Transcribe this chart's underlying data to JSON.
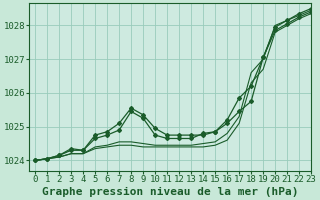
{
  "title": "Graphe pression niveau de la mer (hPa)",
  "background_color": "#c8e8d8",
  "plot_bg_color": "#ceeae0",
  "grid_color": "#99ccbb",
  "line_color": "#1a5c2a",
  "marker_color": "#1a5c2a",
  "xlim": [
    -0.5,
    23
  ],
  "ylim": [
    1023.7,
    1028.65
  ],
  "xticks": [
    0,
    1,
    2,
    3,
    4,
    5,
    6,
    7,
    8,
    9,
    10,
    11,
    12,
    13,
    14,
    15,
    16,
    17,
    18,
    19,
    20,
    21,
    22,
    23
  ],
  "yticks": [
    1024,
    1025,
    1026,
    1027,
    1028
  ],
  "series": [
    [
      1024.0,
      1024.05,
      1024.1,
      1024.2,
      1024.2,
      1024.35,
      1024.4,
      1024.45,
      1024.45,
      1024.4,
      1024.4,
      1024.4,
      1024.4,
      1024.4,
      1024.4,
      1024.45,
      1024.6,
      1025.1,
      1026.3,
      1026.7,
      1027.8,
      1028.0,
      1028.2,
      1028.35
    ],
    [
      1024.0,
      1024.05,
      1024.1,
      1024.2,
      1024.2,
      1024.4,
      1024.45,
      1024.55,
      1024.55,
      1024.5,
      1024.45,
      1024.45,
      1024.45,
      1024.45,
      1024.5,
      1024.55,
      1024.8,
      1025.3,
      1026.6,
      1027.0,
      1028.0,
      1028.15,
      1028.3,
      1028.45
    ],
    [
      1024.0,
      1024.05,
      1024.15,
      1024.3,
      1024.3,
      1024.65,
      1024.75,
      1024.9,
      1025.45,
      1025.25,
      1024.75,
      1024.65,
      1024.65,
      1024.65,
      1024.8,
      1024.85,
      1025.1,
      1025.45,
      1025.75,
      1027.05,
      1027.85,
      1028.05,
      1028.25,
      1028.4
    ],
    [
      1024.0,
      1024.05,
      1024.15,
      1024.35,
      1024.3,
      1024.75,
      1024.85,
      1025.1,
      1025.55,
      1025.35,
      1024.95,
      1024.75,
      1024.75,
      1024.75,
      1024.75,
      1024.85,
      1025.2,
      1025.85,
      1026.2,
      1027.05,
      1027.95,
      1028.15,
      1028.35,
      1028.5
    ]
  ],
  "tick_fontsize": 6.5,
  "xlabel_fontsize": 8,
  "title_fontsize": 8
}
